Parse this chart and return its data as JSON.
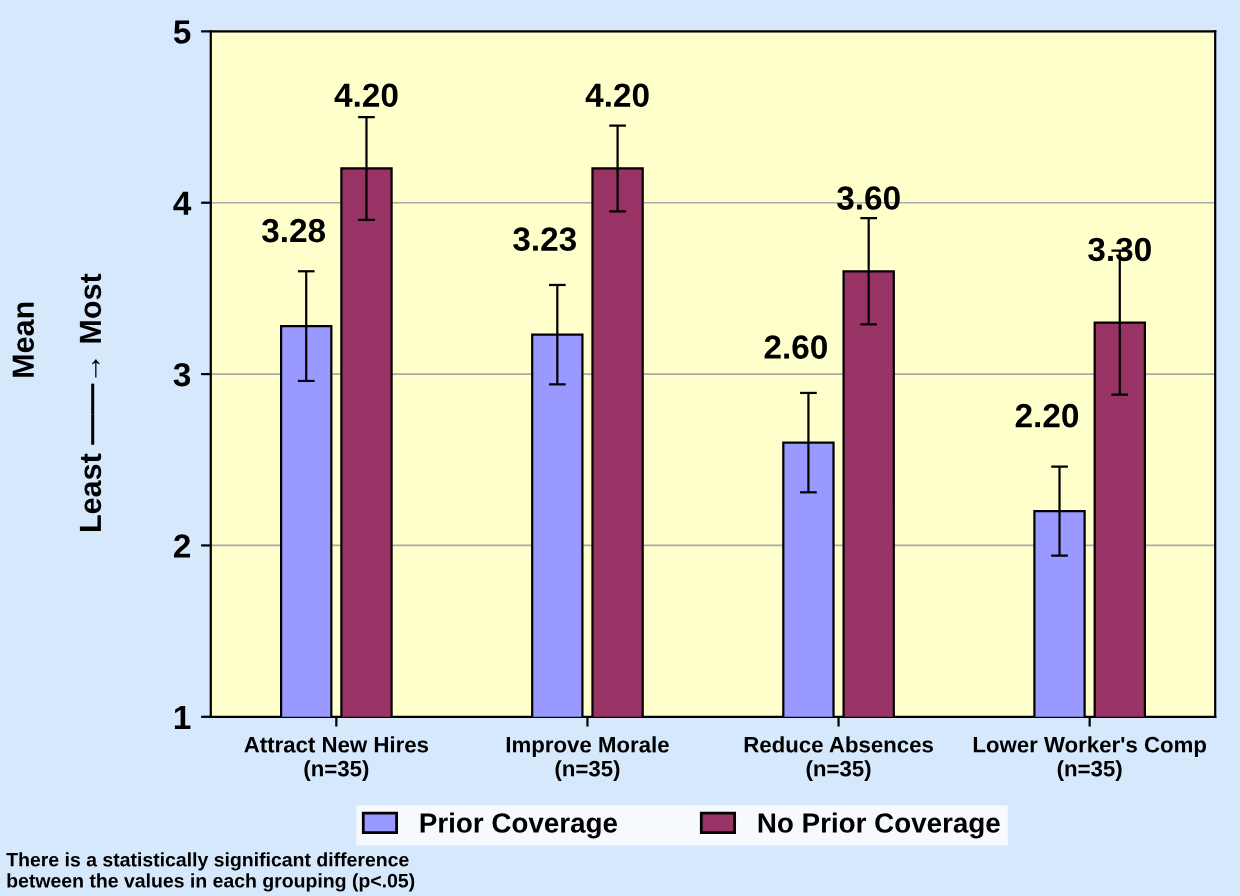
{
  "chart_data": {
    "type": "bar",
    "ylabel": "Mean",
    "categories": [
      "Attract New Hires\n(n=35)",
      "Improve Morale\n(n=35)",
      "Reduce Absences\n(n=35)",
      "Lower Worker's Comp\n(n=35)"
    ],
    "series": [
      {
        "name": "Prior Coverage",
        "color": "#9999ff",
        "values": [
          3.28,
          3.23,
          2.6,
          2.2
        ],
        "errors": [
          0.32,
          0.29,
          0.29,
          0.26
        ],
        "value_labels": [
          "3.28",
          "3.23",
          "2.60",
          "2.20"
        ]
      },
      {
        "name": "No Prior Coverage",
        "color": "#993366",
        "values": [
          4.2,
          4.2,
          3.6,
          3.3
        ],
        "errors": [
          0.3,
          0.25,
          0.31,
          0.42
        ],
        "value_labels": [
          "4.20",
          "4.20",
          "3.60",
          "3.30"
        ]
      }
    ],
    "ylim": [
      1,
      5
    ],
    "yticks": [
      1,
      2,
      3,
      4,
      5
    ],
    "grid": "y",
    "legend": "bottom",
    "annotations": [
      "Least ——→ Most",
      "There is a statistically significant difference\nbetween the values in each grouping (p<.05)"
    ]
  }
}
